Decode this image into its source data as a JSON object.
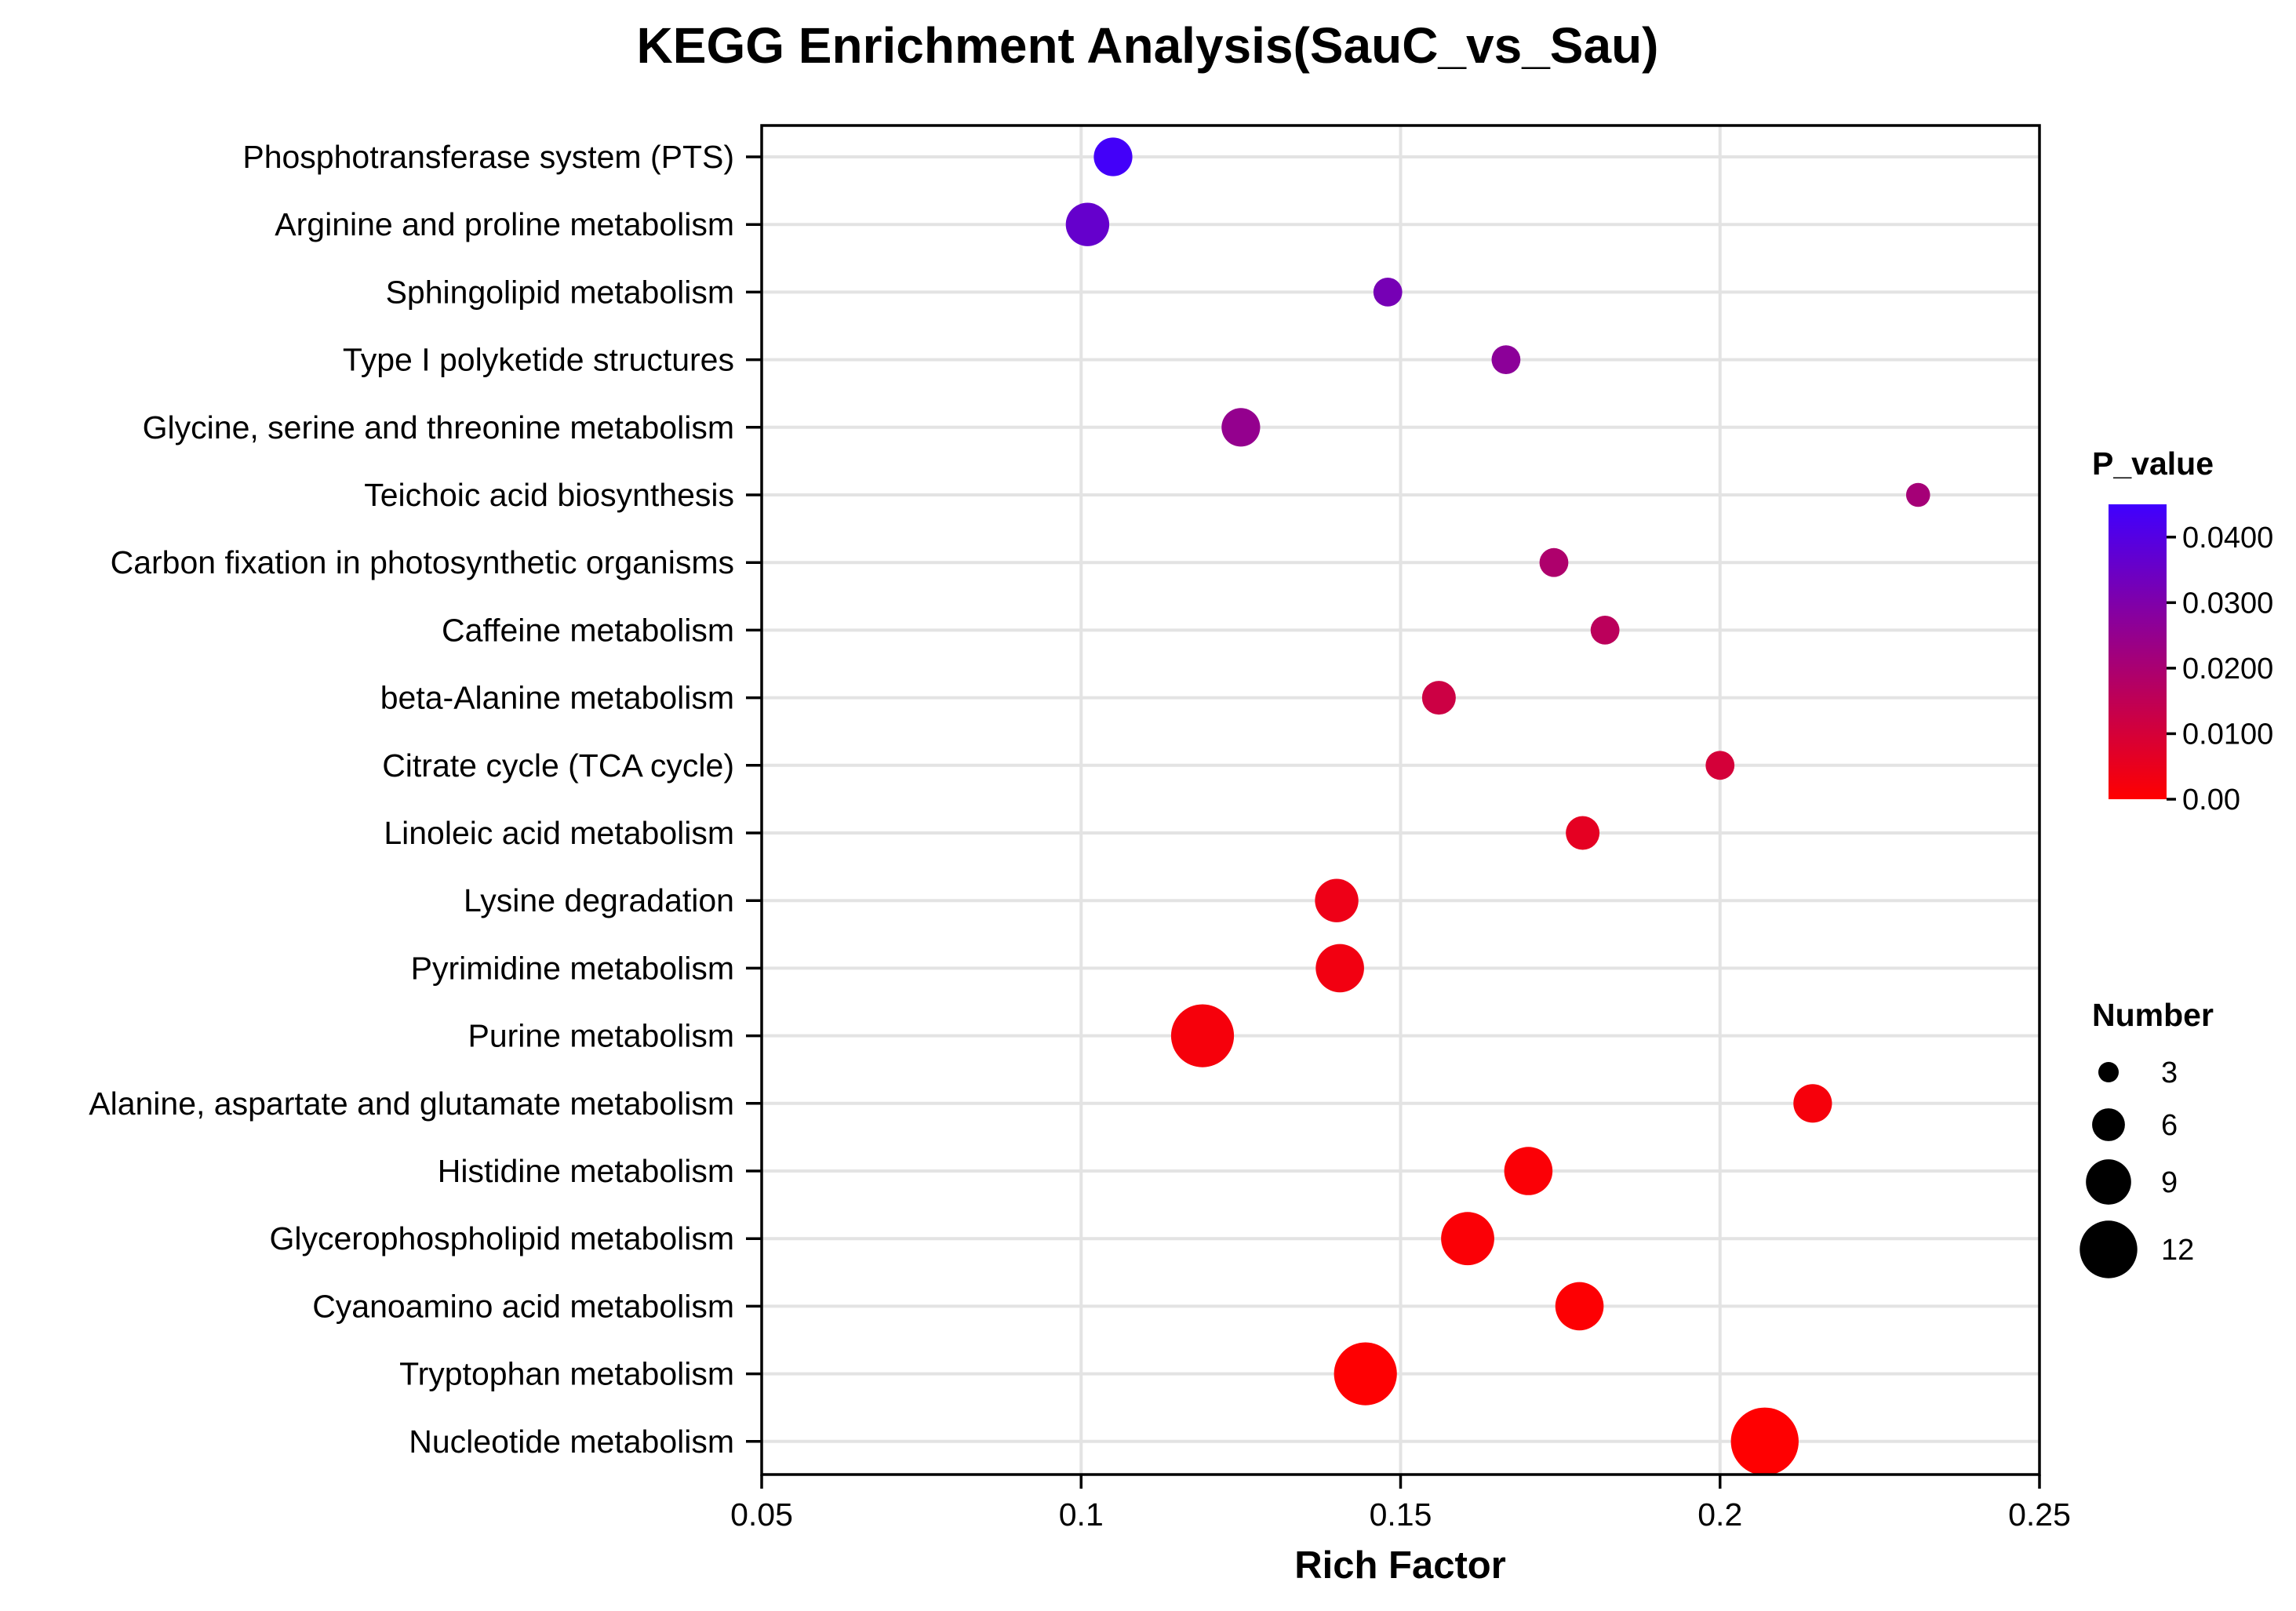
{
  "chart_data": {
    "type": "scatter",
    "title": "KEGG Enrichment Analysis(SauC_vs_Sau)",
    "xlabel": "Rich Factor",
    "ylabel": "",
    "xlim": [
      0.05,
      0.25
    ],
    "xticks": [
      0.05,
      0.1,
      0.15,
      0.2,
      0.25
    ],
    "xtick_labels": [
      "0.05",
      "0.1",
      "0.15",
      "0.2",
      "0.25"
    ],
    "grid": true,
    "color_scale": {
      "title": "P_value",
      "min": 0,
      "max": 0.045,
      "low_color": "#ff0000",
      "high_color": "#3f00ff",
      "ticks": [
        0,
        0.01,
        0.02,
        0.03,
        0.04
      ],
      "tick_labels": [
        "0.00",
        "0.0100",
        "0.0200",
        "0.0300",
        "0.0400"
      ]
    },
    "size_scale": {
      "title": "Number",
      "values": [
        3,
        6,
        9,
        12
      ],
      "labels": [
        "3",
        "6",
        "9",
        "12"
      ]
    },
    "points": [
      {
        "pathway": "Phosphotransferase system (PTS)",
        "rich_factor": 0.105,
        "number": 6,
        "p_value": 0.044
      },
      {
        "pathway": "Arginine and proline metabolism",
        "rich_factor": 0.101,
        "number": 7,
        "p_value": 0.036
      },
      {
        "pathway": "Sphingolipid metabolism",
        "rich_factor": 0.148,
        "number": 4,
        "p_value": 0.032
      },
      {
        "pathway": "Type I polyketide structures",
        "rich_factor": 0.1665,
        "number": 4,
        "p_value": 0.027
      },
      {
        "pathway": "Glycine, serine and threonine metabolism",
        "rich_factor": 0.125,
        "number": 6,
        "p_value": 0.025
      },
      {
        "pathway": "Teichoic acid biosynthesis",
        "rich_factor": 0.231,
        "number": 3,
        "p_value": 0.021
      },
      {
        "pathway": "Carbon fixation in photosynthetic organisms",
        "rich_factor": 0.174,
        "number": 4,
        "p_value": 0.019
      },
      {
        "pathway": "Caffeine metabolism",
        "rich_factor": 0.182,
        "number": 4,
        "p_value": 0.016
      },
      {
        "pathway": "beta-Alanine metabolism",
        "rich_factor": 0.156,
        "number": 5,
        "p_value": 0.012
      },
      {
        "pathway": "Citrate cycle (TCA cycle)",
        "rich_factor": 0.2,
        "number": 4,
        "p_value": 0.01
      },
      {
        "pathway": "Linoleic acid metabolism",
        "rich_factor": 0.1785,
        "number": 5,
        "p_value": 0.006
      },
      {
        "pathway": "Lysine degradation",
        "rich_factor": 0.14,
        "number": 7,
        "p_value": 0.004
      },
      {
        "pathway": "Pyrimidine metabolism",
        "rich_factor": 0.1405,
        "number": 8,
        "p_value": 0.003
      },
      {
        "pathway": "Purine metabolism",
        "rich_factor": 0.119,
        "number": 11,
        "p_value": 0.002
      },
      {
        "pathway": "Alanine, aspartate and glutamate metabolism",
        "rich_factor": 0.2145,
        "number": 6,
        "p_value": 0.002
      },
      {
        "pathway": "Histidine metabolism",
        "rich_factor": 0.17,
        "number": 8,
        "p_value": 0.001
      },
      {
        "pathway": "Glycerophospholipid metabolism",
        "rich_factor": 0.1605,
        "number": 9,
        "p_value": 0.001
      },
      {
        "pathway": "Cyanoamino acid metabolism",
        "rich_factor": 0.178,
        "number": 8,
        "p_value": 0.0005
      },
      {
        "pathway": "Tryptophan metabolism",
        "rich_factor": 0.1445,
        "number": 11,
        "p_value": 0.0003
      },
      {
        "pathway": "Nucleotide metabolism",
        "rich_factor": 0.207,
        "number": 12,
        "p_value": 0.0001
      }
    ]
  }
}
